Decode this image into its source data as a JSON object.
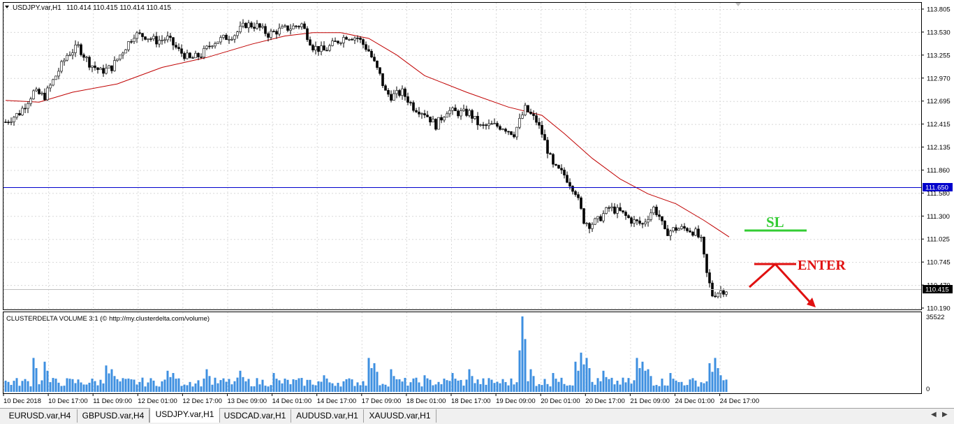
{
  "window": {
    "symbol_label": "USDJPY.var,H1",
    "ohlc_readout": "110.414 110.415 110.414 110.415"
  },
  "price_axis": {
    "labels": [
      "113.805",
      "113.530",
      "113.255",
      "112.970",
      "112.695",
      "112.415",
      "112.135",
      "111.860",
      "111.580",
      "111.300",
      "111.025",
      "110.745",
      "110.470",
      "110.190"
    ],
    "hline_price": "111.650",
    "hline_color": "#0000cc",
    "current_price": "110.415"
  },
  "ma_color": "#c00000",
  "candle_color": "#000000",
  "annotations": {
    "sl_label": "SL",
    "sl_color": "#33cc33",
    "enter_label": "ENTER",
    "enter_color": "#e01010"
  },
  "indicator": {
    "title": "CLUSTERDELTA VOLUME 3:1 (© http://my.clusterdelta.com/volume)",
    "max_label": "35522",
    "zero_label": "0",
    "bar_color": "#3d8fe0"
  },
  "time_axis": {
    "labels": [
      "10 Dec 2018",
      "10 Dec 17:00",
      "11 Dec 09:00",
      "12 Dec 01:00",
      "12 Dec 17:00",
      "13 Dec 09:00",
      "14 Dec 01:00",
      "14 Dec 17:00",
      "17 Dec 09:00",
      "18 Dec 01:00",
      "18 Dec 17:00",
      "19 Dec 09:00",
      "20 Dec 01:00",
      "20 Dec 17:00",
      "21 Dec 09:00",
      "24 Dec 01:00",
      "24 Dec 17:00"
    ]
  },
  "tabs": [
    {
      "label": "EURUSD.var,H4",
      "active": false
    },
    {
      "label": "GBPUSD.var,H4",
      "active": false
    },
    {
      "label": "USDJPY.var,H1",
      "active": true
    },
    {
      "label": "USDCAD.var,H1",
      "active": false
    },
    {
      "label": "AUDUSD.var,H1",
      "active": false
    },
    {
      "label": "XAUUSD.var,H1",
      "active": false
    }
  ],
  "chart_data": {
    "type": "candlestick",
    "symbol": "USDJPY",
    "timeframe": "H1",
    "close_path": [
      {
        "x": "10 Dec 2018",
        "y": 112.44
      },
      {
        "x": "10 Dec 17:00",
        "y": 113.2
      },
      {
        "x": "11 Dec 09:00",
        "y": 113.3
      },
      {
        "x": "12 Dec 01:00",
        "y": 113.45
      },
      {
        "x": "12 Dec 17:00",
        "y": 113.25
      },
      {
        "x": "13 Dec 09:00",
        "y": 113.62
      },
      {
        "x": "14 Dec 01:00",
        "y": 113.62
      },
      {
        "x": "14 Dec 17:00",
        "y": 113.45
      },
      {
        "x": "17 Dec 09:00",
        "y": 112.8
      },
      {
        "x": "18 Dec 01:00",
        "y": 112.55
      },
      {
        "x": "18 Dec 17:00",
        "y": 112.45
      },
      {
        "x": "19 Dec 09:00",
        "y": 112.4
      },
      {
        "x": "20 Dec 01:00",
        "y": 111.7
      },
      {
        "x": "20 Dec 17:00",
        "y": 111.3
      },
      {
        "x": "21 Dec 09:00",
        "y": 111.2
      },
      {
        "x": "24 Dec 01:00",
        "y": 111.05
      },
      {
        "x": "24 Dec 17:00",
        "y": 110.41
      }
    ],
    "moving_average": [
      {
        "x": "10 Dec 2018",
        "y": 112.7
      },
      {
        "x": "11 Dec 09:00",
        "y": 112.95
      },
      {
        "x": "12 Dec 01:00",
        "y": 113.15
      },
      {
        "x": "13 Dec 09:00",
        "y": 113.45
      },
      {
        "x": "14 Dec 01:00",
        "y": 113.55
      },
      {
        "x": "14 Dec 17:00",
        "y": 113.52
      },
      {
        "x": "17 Dec 09:00",
        "y": 113.3
      },
      {
        "x": "18 Dec 01:00",
        "y": 112.95
      },
      {
        "x": "19 Dec 09:00",
        "y": 112.6
      },
      {
        "x": "20 Dec 01:00",
        "y": 112.2
      },
      {
        "x": "21 Dec 09:00",
        "y": 111.6
      },
      {
        "x": "24 Dec 01:00",
        "y": 111.35
      },
      {
        "x": "24 Dec 17:00",
        "y": 111.1
      }
    ],
    "horizontal_line": 111.65,
    "ylim": [
      110.19,
      113.805
    ]
  }
}
